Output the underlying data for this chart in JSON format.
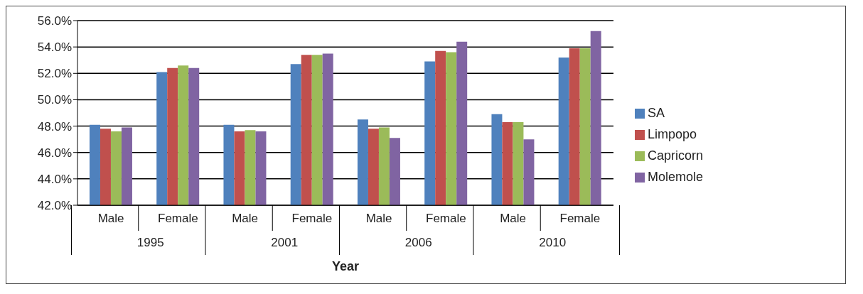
{
  "chart_data": {
    "type": "bar",
    "categories": [
      "Male",
      "Female",
      "Male",
      "Female",
      "Male",
      "Female",
      "Male",
      "Female"
    ],
    "series": [
      {
        "name": "SA",
        "color": "#4f81bd",
        "values": [
          48.1,
          52.1,
          48.1,
          52.7,
          48.5,
          52.9,
          48.9,
          53.2
        ]
      },
      {
        "name": "Limpopo",
        "color": "#c0504d",
        "values": [
          47.8,
          52.4,
          47.6,
          53.4,
          47.8,
          53.7,
          48.3,
          53.9
        ]
      },
      {
        "name": "Capricorn",
        "color": "#9bbb59",
        "values": [
          47.6,
          52.6,
          47.7,
          53.4,
          47.9,
          53.6,
          48.3,
          53.9
        ]
      },
      {
        "name": "Molemole",
        "color": "#8064a2",
        "values": [
          47.9,
          52.4,
          47.6,
          53.5,
          47.1,
          54.4,
          47.0,
          55.2
        ]
      }
    ],
    "annotations": [
      "1995",
      "2001",
      "2006",
      "2010"
    ],
    "xlabel": "Year",
    "ylim": [
      42,
      56
    ],
    "yticks": [
      {
        "value": 42,
        "label": "42.0%"
      },
      {
        "value": 44,
        "label": "44.0%"
      },
      {
        "value": 46,
        "label": "46.0%"
      },
      {
        "value": 48,
        "label": "48.0%"
      },
      {
        "value": 50,
        "label": "50.0%"
      },
      {
        "value": 52,
        "label": "52.0%"
      },
      {
        "value": 54,
        "label": "54.0%"
      },
      {
        "value": 56,
        "label": "56.0%"
      }
    ],
    "grid": "y",
    "legend": "right"
  }
}
